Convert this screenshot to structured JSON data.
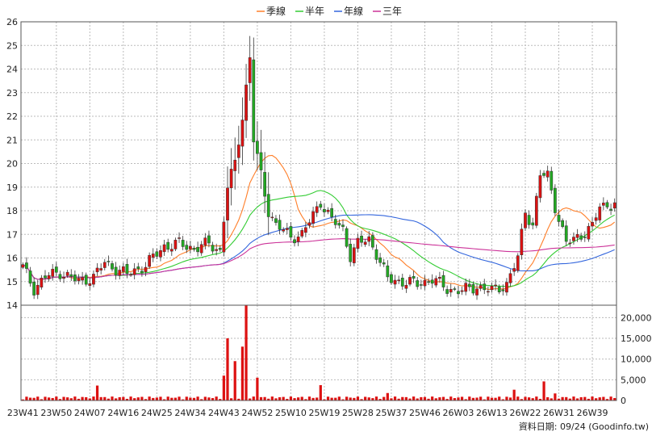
{
  "chart_data": {
    "type": "candlestick",
    "legend": [
      {
        "name": "季線",
        "color": "#ff7f2a"
      },
      {
        "name": "半年",
        "color": "#33cc33"
      },
      {
        "name": "年線",
        "color": "#3366dd"
      },
      {
        "name": "三年",
        "color": "#cc3399"
      }
    ],
    "price_axis": {
      "min": 14,
      "max": 26,
      "ticks": [
        14,
        15,
        16,
        17,
        18,
        19,
        20,
        21,
        22,
        23,
        24,
        25,
        26
      ]
    },
    "volume_axis": {
      "max": 23000,
      "ticks": [
        0,
        5000,
        10000,
        15000,
        20000
      ],
      "tick_labels": [
        "0",
        "5,000",
        "10,000",
        "15,000",
        "20,000"
      ]
    },
    "x_ticks": [
      "23W41",
      "23W50",
      "24W07",
      "24W16",
      "24W25",
      "24W34",
      "24W43",
      "24W52",
      "25W10",
      "25W19",
      "25W28",
      "25W37",
      "25W46",
      "26W03",
      "26W13",
      "26W22",
      "26W31",
      "26W39"
    ],
    "weeks_per_tick": 9,
    "weeks": 160,
    "anchors": [
      [
        0,
        15.6
      ],
      [
        3,
        14.7
      ],
      [
        6,
        15.2
      ],
      [
        10,
        15.4
      ],
      [
        15,
        15.0
      ],
      [
        19,
        15.2
      ],
      [
        22,
        15.8
      ],
      [
        28,
        15.3
      ],
      [
        33,
        15.7
      ],
      [
        38,
        16.5
      ],
      [
        42,
        16.6
      ],
      [
        46,
        16.4
      ],
      [
        50,
        16.6
      ],
      [
        53,
        16.3
      ],
      [
        55,
        19.0
      ],
      [
        57,
        20.0
      ],
      [
        59,
        22.0
      ],
      [
        61,
        24.5
      ],
      [
        62,
        21.0
      ],
      [
        64,
        19.5
      ],
      [
        66,
        18.0
      ],
      [
        68,
        17.4
      ],
      [
        72,
        16.9
      ],
      [
        75,
        17.0
      ],
      [
        78,
        17.8
      ],
      [
        80,
        18.4
      ],
      [
        83,
        17.6
      ],
      [
        86,
        17.2
      ],
      [
        88,
        16.1
      ],
      [
        90,
        16.6
      ],
      [
        93,
        16.8
      ],
      [
        95,
        16.2
      ],
      [
        98,
        15.1
      ],
      [
        102,
        15.0
      ],
      [
        106,
        14.9
      ],
      [
        110,
        15.1
      ],
      [
        114,
        14.7
      ],
      [
        118,
        14.6
      ],
      [
        122,
        14.8
      ],
      [
        126,
        14.6
      ],
      [
        130,
        14.9
      ],
      [
        133,
        16.0
      ],
      [
        135,
        18.0
      ],
      [
        137,
        17.4
      ],
      [
        139,
        19.5
      ],
      [
        141,
        19.5
      ],
      [
        143,
        18.2
      ],
      [
        146,
        16.6
      ],
      [
        150,
        17.0
      ],
      [
        153,
        17.3
      ],
      [
        155,
        18.2
      ],
      [
        159,
        18.3
      ]
    ],
    "volume_spikes": {
      "20": 3600,
      "54": 6000,
      "55": 15000,
      "57": 9500,
      "59": 13000,
      "60": 23000,
      "63": 5500,
      "80": 3700,
      "98": 1800,
      "132": 2600,
      "140": 4600,
      "143": 1700
    },
    "source": "資料日期: 09/24  (Goodinfo.tw)"
  }
}
